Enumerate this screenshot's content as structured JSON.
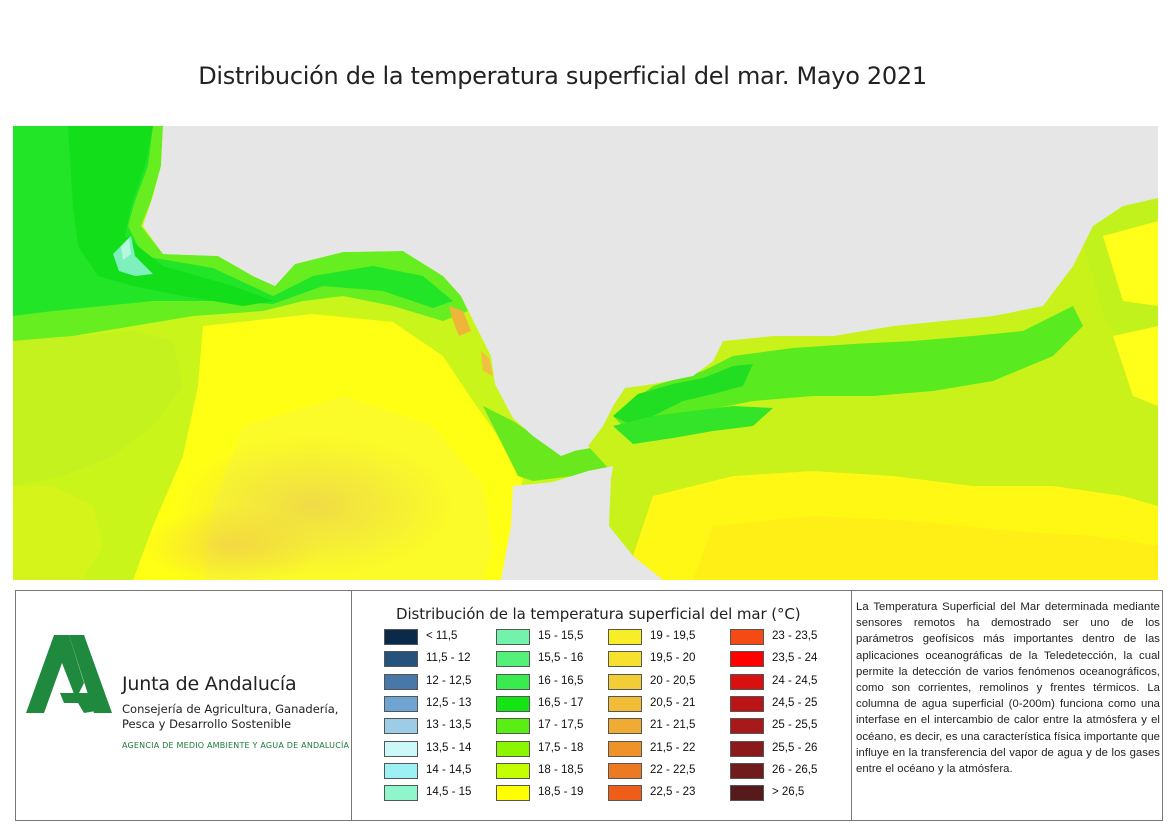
{
  "title": "Distribución de la temperatura superficial del mar. Mayo 2021",
  "map": {
    "land_color": "#e6e6e6",
    "colors": {
      "cyan_pale": "#8ff0c8",
      "green_bright": "#11e811",
      "green": "#3af03a",
      "green_light": "#66f21c",
      "yellow_green": "#c4ff00",
      "lime": "#9cf500",
      "yellow": "#ffff00",
      "yellow_warm": "#f7ee3c",
      "orange": "#f2b03a"
    }
  },
  "logo": {
    "name": "Junta de Andalucía",
    "lines": [
      "Consejería de Agricultura, Ganadería,",
      "Pesca y Desarrollo Sostenible"
    ],
    "agency": "AGENCIA DE MEDIO AMBIENTE Y AGUA DE ANDALUCÍA",
    "logo_color": "#1f8a3e"
  },
  "legend": {
    "title": "Distribución de la temperatura superficial del mar (°C)",
    "items": [
      {
        "label": "< 11,5",
        "color": "#0b2a4a"
      },
      {
        "label": "11,5 - 12",
        "color": "#27527c"
      },
      {
        "label": "12 - 12,5",
        "color": "#4778a8"
      },
      {
        "label": "12,5 - 13",
        "color": "#6ea3d2"
      },
      {
        "label": "13 - 13,5",
        "color": "#9ccce6"
      },
      {
        "label": "13,5 - 14",
        "color": "#ccf8fa"
      },
      {
        "label": "14 - 14,5",
        "color": "#9df0f4"
      },
      {
        "label": "14,5 - 15",
        "color": "#8ff6cc"
      },
      {
        "label": "15 - 15,5",
        "color": "#72f2aa"
      },
      {
        "label": "15,5 - 16",
        "color": "#55f07a"
      },
      {
        "label": "16 - 16,5",
        "color": "#3aeb4f"
      },
      {
        "label": "16,5 - 17",
        "color": "#14e414"
      },
      {
        "label": "17 - 17,5",
        "color": "#5aee14"
      },
      {
        "label": "17,5 - 18",
        "color": "#8cf500"
      },
      {
        "label": "18 - 18,5",
        "color": "#c4ff00"
      },
      {
        "label": "18,5 - 19",
        "color": "#ffff00"
      },
      {
        "label": "19 - 19,5",
        "color": "#f8ee28"
      },
      {
        "label": "19,5 - 20",
        "color": "#f5e12e"
      },
      {
        "label": "20 - 20,5",
        "color": "#f2cd38"
      },
      {
        "label": "20,5 - 21",
        "color": "#f2bd36"
      },
      {
        "label": "21 - 21,5",
        "color": "#f0ab34"
      },
      {
        "label": "21,5 - 22",
        "color": "#ee922a"
      },
      {
        "label": "22 - 22,5",
        "color": "#eb7a22"
      },
      {
        "label": "22,5 - 23",
        "color": "#ef5e18"
      },
      {
        "label": "23 - 23,5",
        "color": "#f64a14"
      },
      {
        "label": "23,5 - 24",
        "color": "#ff0000"
      },
      {
        "label": "24 - 24,5",
        "color": "#d81010"
      },
      {
        "label": "24,5 - 25",
        "color": "#bb1414"
      },
      {
        "label": "25 - 25,5",
        "color": "#a81a1a"
      },
      {
        "label": "25,5 - 26",
        "color": "#8c1a1a"
      },
      {
        "label": "26 - 26,5",
        "color": "#701c1c"
      },
      {
        "label": "> 26,5",
        "color": "#561a1a"
      }
    ]
  },
  "description": "La Temperatura Superficial del Mar determinada mediante sensores remotos ha demostrado ser uno de los parámetros geofísicos más importantes dentro de las aplicaciones oceanográficas de la Teledetección, la cual permite la detección de varios fenómenos oceanográficos, como son corrientes, remolinos y frentes térmicos. La columna de agua superficial (0-200m) funciona como una interfase en el intercambio de calor entre la atmósfera y el océano, es decir, es una característica física importante que influye en la transferencia del vapor de agua y de los gases entre el océano y la atmósfera."
}
